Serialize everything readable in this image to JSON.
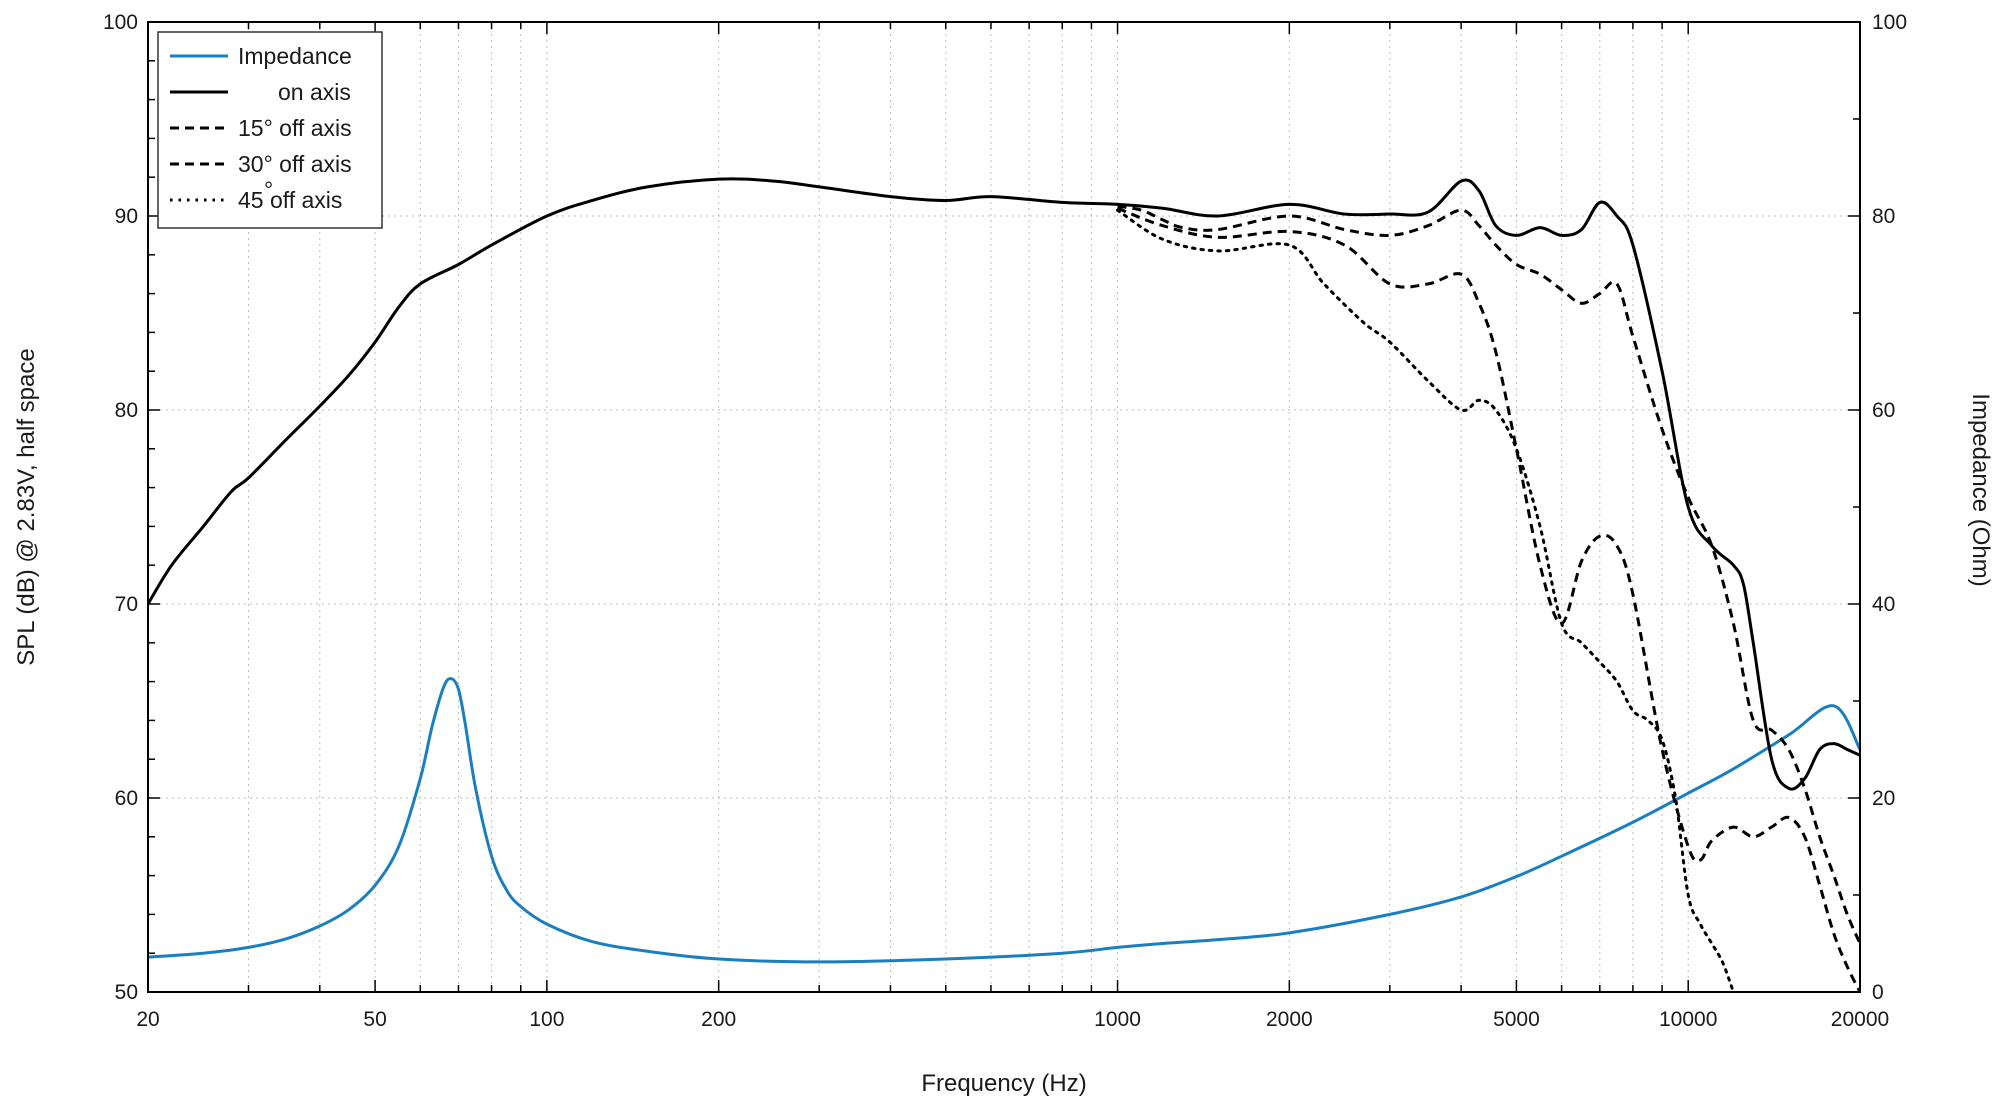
{
  "chart_data": {
    "type": "line",
    "xscale": "log",
    "xlim": [
      20,
      20000
    ],
    "x_ticks": [
      20,
      50,
      100,
      200,
      1000,
      2000,
      5000,
      10000,
      20000
    ],
    "x_tick_labels": [
      "20",
      "50",
      "100",
      "200",
      "1000",
      "2000",
      "5000",
      "10000",
      "20000"
    ],
    "xlabel": "Frequency (Hz)",
    "ylim_left": [
      50,
      100
    ],
    "y_ticks_left": [
      50,
      60,
      70,
      80,
      90,
      100
    ],
    "y_tick_labels_left": [
      "50",
      "60",
      "70",
      "80",
      "90",
      "100"
    ],
    "ylabel_left": "SPL (dB) @ 2.83V, half space",
    "ylim_right": [
      0,
      100
    ],
    "y_ticks_right": [
      0,
      20,
      40,
      60,
      80,
      100
    ],
    "y_tick_labels_right": [
      "0",
      "20",
      "40",
      "60",
      "80",
      "100"
    ],
    "ylabel_right": "Impedance (Ohm)",
    "grid": true,
    "legend_position": "top-left",
    "series": [
      {
        "name": "Impedance",
        "axis": "right",
        "color": "#1a7fc1",
        "style": "solid",
        "x": [
          20,
          25,
          30,
          35,
          40,
          45,
          50,
          55,
          60,
          63,
          66,
          68,
          70,
          72,
          75,
          80,
          85,
          90,
          100,
          120,
          150,
          200,
          300,
          500,
          800,
          1000,
          1200,
          1500,
          2000,
          3000,
          4000,
          5000,
          6000,
          8000,
          10000,
          12000,
          15000,
          18000,
          20000
        ],
        "y": [
          3.6,
          4.0,
          4.6,
          5.5,
          6.8,
          8.5,
          11.0,
          15.0,
          22.0,
          27.5,
          31.5,
          32.3,
          31.2,
          27.5,
          21.0,
          14.0,
          10.5,
          8.8,
          7.0,
          5.2,
          4.2,
          3.4,
          3.1,
          3.4,
          4.0,
          4.6,
          5.0,
          5.4,
          6.1,
          8.0,
          9.8,
          11.9,
          14.0,
          17.5,
          20.5,
          23.0,
          26.5,
          29.5,
          25.0
        ]
      },
      {
        "name": "on axis",
        "axis": "left",
        "color": "#000000",
        "style": "solid",
        "x": [
          20,
          22,
          25,
          28,
          30,
          35,
          40,
          45,
          50,
          55,
          60,
          70,
          80,
          100,
          120,
          150,
          200,
          250,
          300,
          400,
          500,
          600,
          800,
          1000,
          1200,
          1500,
          2000,
          2500,
          3000,
          3500,
          4000,
          4300,
          4600,
          5000,
          5500,
          6000,
          6500,
          7000,
          7500,
          8000,
          9000,
          10000,
          11000,
          12000,
          12500,
          13000,
          14000,
          15000,
          16000,
          17000,
          18000,
          19000,
          20000
        ],
        "y": [
          70,
          72,
          74,
          75.8,
          76.5,
          78.5,
          80.2,
          81.8,
          83.5,
          85.3,
          86.5,
          87.5,
          88.5,
          90,
          90.8,
          91.5,
          91.9,
          91.8,
          91.5,
          91.0,
          90.8,
          91.0,
          90.7,
          90.6,
          90.4,
          90.0,
          90.6,
          90.1,
          90.1,
          90.2,
          91.8,
          91.3,
          89.5,
          89.0,
          89.4,
          89.0,
          89.3,
          90.7,
          90.0,
          88.5,
          82.0,
          75.0,
          73.0,
          72.0,
          71.0,
          68.0,
          62.0,
          60.5,
          61.0,
          62.5,
          62.8,
          62.5,
          62.2
        ]
      },
      {
        "name": "15° off axis",
        "axis": "left",
        "color": "#000000",
        "style": "dashed",
        "x": [
          1000,
          1100,
          1200,
          1300,
          1500,
          2000,
          2500,
          3000,
          3500,
          4000,
          4300,
          4600,
          5000,
          5500,
          6000,
          6500,
          7000,
          7500,
          8000,
          9000,
          10000,
          11000,
          12000,
          13000,
          14000,
          15000,
          16000,
          17000,
          18000,
          19000,
          20000
        ],
        "y": [
          90.5,
          90.3,
          89.8,
          89.4,
          89.3,
          90.0,
          89.3,
          89.0,
          89.5,
          90.3,
          89.5,
          88.5,
          87.5,
          87.0,
          86.2,
          85.5,
          86.0,
          86.5,
          83.8,
          79.0,
          75.5,
          73.0,
          69.0,
          64.0,
          63.5,
          62.5,
          60.5,
          58.0,
          56.0,
          54.0,
          52.5
        ]
      },
      {
        "name": "30° off axis",
        "axis": "left",
        "color": "#000000",
        "style": "dashed",
        "x": [
          1000,
          1200,
          1500,
          2000,
          2500,
          3000,
          3500,
          4000,
          4300,
          4600,
          5000,
          5500,
          6000,
          6500,
          7000,
          7500,
          8000,
          9000,
          10000,
          10500,
          11000,
          12000,
          13000,
          14000,
          15000,
          16000,
          17000,
          18000,
          19000,
          20000
        ],
        "y": [
          90.4,
          89.5,
          88.9,
          89.2,
          88.5,
          86.5,
          86.5,
          87.0,
          85.5,
          83.0,
          78.0,
          72.0,
          69.0,
          72.2,
          73.5,
          73.0,
          70.5,
          62.5,
          57.5,
          56.8,
          57.8,
          58.5,
          58.0,
          58.5,
          59.0,
          58.0,
          55.5,
          53.0,
          51.3,
          50.0
        ]
      },
      {
        "name": "45  off axis",
        "axis": "left",
        "color": "#000000",
        "style": "dotted",
        "x": [
          1000,
          1200,
          1500,
          2000,
          2300,
          2700,
          3000,
          3500,
          4000,
          4300,
          4600,
          5000,
          5500,
          6000,
          6500,
          7000,
          7500,
          8000,
          8500,
          9000,
          9500,
          10000,
          10500,
          11000,
          11500,
          12000
        ],
        "y": [
          90.3,
          88.8,
          88.2,
          88.5,
          86.5,
          84.5,
          83.5,
          81.5,
          80.0,
          80.5,
          80.0,
          78.0,
          74.0,
          69.0,
          68.0,
          67.0,
          66.0,
          64.5,
          64.0,
          63.0,
          60.0,
          55.0,
          53.5,
          52.5,
          51.5,
          50.0
        ]
      }
    ]
  }
}
